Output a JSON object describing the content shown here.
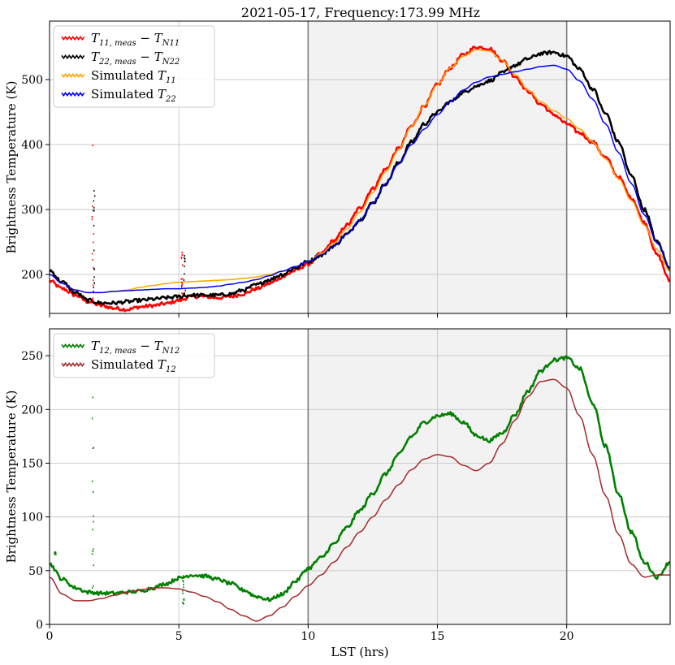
{
  "title": "2021-05-17, Frequency:173.99 MHz",
  "chart_data": [
    {
      "type": "line",
      "ylabel": "Brightness Temperature (K)",
      "xlim": [
        0,
        24
      ],
      "ylim": [
        140,
        590
      ],
      "xticks": [
        0,
        5,
        10,
        15,
        20
      ],
      "yticks": [
        200,
        300,
        400,
        500
      ],
      "grid": true,
      "shaded_region": [
        10,
        20
      ],
      "vlines": [
        10,
        20
      ],
      "legend_position": "top-left",
      "series": [
        {
          "name": "T11,meas − TN11",
          "legend": {
            "base": "T",
            "sub": "11, meas",
            "minus": " − ",
            "base2": "T",
            "sub2": "N11"
          },
          "color": "#ff0000",
          "style": "noisy",
          "x": [
            0,
            0.5,
            1,
            1.5,
            2,
            2.5,
            3,
            3.5,
            4,
            4.5,
            5,
            5.5,
            6,
            6.5,
            7,
            7.5,
            8,
            8.5,
            9,
            9.5,
            10,
            10.5,
            11,
            11.5,
            12,
            12.5,
            13,
            13.5,
            14,
            14.5,
            15,
            15.5,
            16,
            16.5,
            17,
            17.5,
            18,
            18.5,
            19,
            19.5,
            20,
            20.5,
            21,
            21.5,
            22,
            22.5,
            23,
            23.5,
            24
          ],
          "y": [
            190,
            178,
            168,
            158,
            152,
            148,
            146,
            150,
            152,
            155,
            160,
            166,
            166,
            164,
            166,
            170,
            178,
            186,
            196,
            206,
            216,
            232,
            252,
            276,
            302,
            332,
            362,
            394,
            428,
            460,
            492,
            518,
            538,
            550,
            548,
            530,
            505,
            482,
            462,
            446,
            432,
            418,
            404,
            380,
            350,
            318,
            280,
            230,
            190
          ]
        },
        {
          "name": "T22,meas − TN22",
          "legend": {
            "base": "T",
            "sub": "22, meas",
            "minus": " − ",
            "base2": "T",
            "sub2": "N22"
          },
          "color": "#000000",
          "style": "noisy",
          "x": [
            0,
            0.5,
            1,
            1.5,
            2,
            2.5,
            3,
            3.5,
            4,
            4.5,
            5,
            5.5,
            6,
            6.5,
            7,
            7.5,
            8,
            8.5,
            9,
            9.5,
            10,
            10.5,
            11,
            11.5,
            12,
            12.5,
            13,
            13.5,
            14,
            14.5,
            15,
            15.5,
            16,
            16.5,
            17,
            17.5,
            18,
            18.5,
            19,
            19.5,
            20,
            20.5,
            21,
            21.5,
            22,
            22.5,
            23,
            23.5,
            24
          ],
          "y": [
            206,
            188,
            172,
            160,
            156,
            156,
            158,
            160,
            162,
            164,
            166,
            168,
            168,
            168,
            170,
            176,
            184,
            192,
            200,
            210,
            220,
            230,
            244,
            262,
            284,
            310,
            340,
            372,
            404,
            432,
            450,
            466,
            480,
            490,
            498,
            510,
            522,
            532,
            540,
            542,
            536,
            516,
            486,
            448,
            404,
            352,
            300,
            250,
            208
          ]
        },
        {
          "name": "Simulated T11",
          "legend": {
            "prefix": "Simulated ",
            "base": "T",
            "sub": "11"
          },
          "color": "#ffa500",
          "style": "smooth",
          "x": [
            0,
            0.5,
            1,
            1.5,
            2,
            2.5,
            3,
            3.5,
            4,
            4.5,
            5,
            5.5,
            6,
            6.5,
            7,
            7.5,
            8,
            8.5,
            9,
            9.5,
            10,
            10.5,
            11,
            11.5,
            12,
            12.5,
            13,
            13.5,
            14,
            14.5,
            15,
            15.5,
            16,
            16.5,
            17,
            17.5,
            18,
            18.5,
            19,
            19.5,
            20,
            20.5,
            21,
            21.5,
            22,
            22.5,
            23,
            23.5,
            24
          ],
          "y": [
            200,
            186,
            176,
            172,
            172,
            174,
            176,
            180,
            183,
            186,
            188,
            189,
            190,
            191,
            192,
            194,
            196,
            200,
            205,
            212,
            220,
            232,
            248,
            270,
            296,
            326,
            358,
            392,
            428,
            460,
            492,
            518,
            536,
            546,
            544,
            530,
            508,
            484,
            466,
            452,
            440,
            424,
            404,
            378,
            348,
            314,
            276,
            238,
            205
          ]
        },
        {
          "name": "Simulated T22",
          "legend": {
            "prefix": "Simulated ",
            "base": "T",
            "sub": "22"
          },
          "color": "#0000ff",
          "style": "smooth",
          "x": [
            0,
            0.5,
            1,
            1.5,
            2,
            2.5,
            3,
            3.5,
            4,
            4.5,
            5,
            5.5,
            6,
            6.5,
            7,
            7.5,
            8,
            8.5,
            9,
            9.5,
            10,
            10.5,
            11,
            11.5,
            12,
            12.5,
            13,
            13.5,
            14,
            14.5,
            15,
            15.5,
            16,
            16.5,
            17,
            17.5,
            18,
            18.5,
            19,
            19.5,
            20,
            20.5,
            21,
            21.5,
            22,
            22.5,
            23,
            23.5,
            24
          ],
          "y": [
            200,
            186,
            176,
            172,
            172,
            174,
            175,
            176,
            177,
            178,
            178,
            179,
            180,
            182,
            185,
            188,
            192,
            198,
            205,
            212,
            220,
            230,
            244,
            262,
            284,
            310,
            340,
            370,
            400,
            424,
            446,
            466,
            484,
            496,
            504,
            508,
            512,
            516,
            520,
            522,
            516,
            498,
            470,
            432,
            388,
            340,
            292,
            248,
            210
          ]
        }
      ],
      "spikes": [
        {
          "color": "#ff0000",
          "x": 1.65,
          "top": 400,
          "bottom": 160
        },
        {
          "color": "#000000",
          "x": 1.7,
          "top": 330,
          "bottom": 165
        },
        {
          "color": "#ff0000",
          "x": 5.1,
          "top": 235,
          "bottom": 168
        },
        {
          "color": "#000000",
          "x": 5.2,
          "top": 230,
          "bottom": 170
        }
      ]
    },
    {
      "type": "line",
      "xlabel": "LST (hrs)",
      "ylabel": "Brightness Temperature (K)",
      "xlim": [
        0,
        24
      ],
      "ylim": [
        0,
        275
      ],
      "xticks": [
        0,
        5,
        10,
        15,
        20
      ],
      "xticklabels": [
        "0",
        "5",
        "10",
        "15",
        "20"
      ],
      "yticks": [
        0,
        50,
        100,
        150,
        200,
        250
      ],
      "grid": true,
      "shaded_region": [
        10,
        20
      ],
      "vlines": [
        10,
        20
      ],
      "legend_position": "top-left",
      "series": [
        {
          "name": "T12,meas − TN12",
          "legend": {
            "base": "T",
            "sub": "12, meas",
            "minus": " − ",
            "base2": "T",
            "sub2": "N12"
          },
          "color": "#008000",
          "style": "noisy",
          "x": [
            0,
            0.5,
            1,
            1.5,
            2,
            2.5,
            3,
            3.5,
            4,
            4.5,
            5,
            5.5,
            6,
            6.5,
            7,
            7.5,
            8,
            8.5,
            9,
            9.5,
            10,
            10.5,
            11,
            11.5,
            12,
            12.5,
            13,
            13.5,
            14,
            14.5,
            15,
            15.5,
            16,
            16.5,
            17,
            17.5,
            18,
            18.5,
            19,
            19.5,
            20,
            20.5,
            21,
            21.5,
            22,
            22.5,
            23,
            23.5,
            24
          ],
          "y": [
            56,
            42,
            34,
            30,
            29,
            29,
            30,
            31,
            34,
            38,
            43,
            46,
            45,
            42,
            38,
            32,
            26,
            23,
            28,
            40,
            52,
            62,
            75,
            90,
            106,
            122,
            140,
            158,
            175,
            188,
            194,
            196,
            188,
            176,
            171,
            178,
            195,
            217,
            236,
            246,
            248,
            238,
            206,
            166,
            122,
            86,
            58,
            44,
            58
          ]
        },
        {
          "name": "Simulated T12",
          "legend": {
            "prefix": "Simulated ",
            "base": "T",
            "sub": "12"
          },
          "color": "#a52a2a",
          "style": "smooth",
          "x": [
            0,
            0.5,
            1,
            1.5,
            2,
            2.5,
            3,
            3.5,
            4,
            4.5,
            5,
            5.5,
            6,
            6.5,
            7,
            7.5,
            8,
            8.5,
            9,
            9.5,
            10,
            10.5,
            11,
            11.5,
            12,
            12.5,
            13,
            13.5,
            14,
            14.5,
            15,
            15.5,
            16,
            16.5,
            17,
            17.5,
            18,
            18.5,
            19,
            19.5,
            20,
            20.5,
            21,
            21.5,
            22,
            22.5,
            23,
            23.5,
            24
          ],
          "y": [
            44,
            28,
            22,
            22,
            24,
            27,
            30,
            32,
            34,
            34,
            33,
            30,
            26,
            21,
            14,
            8,
            3,
            8,
            16,
            26,
            36,
            46,
            58,
            72,
            86,
            100,
            116,
            130,
            144,
            154,
            158,
            156,
            148,
            143,
            150,
            168,
            190,
            212,
            226,
            228,
            220,
            194,
            158,
            120,
            84,
            56,
            44,
            46,
            46
          ]
        }
      ],
      "spikes": [
        {
          "color": "#008000",
          "x": 1.65,
          "top": 212,
          "bottom": 30
        },
        {
          "color": "#008000",
          "x": 5.15,
          "top": 46,
          "bottom": 20
        },
        {
          "color": "#008000",
          "x": 0.2,
          "top": 68,
          "bottom": 66
        }
      ]
    }
  ]
}
